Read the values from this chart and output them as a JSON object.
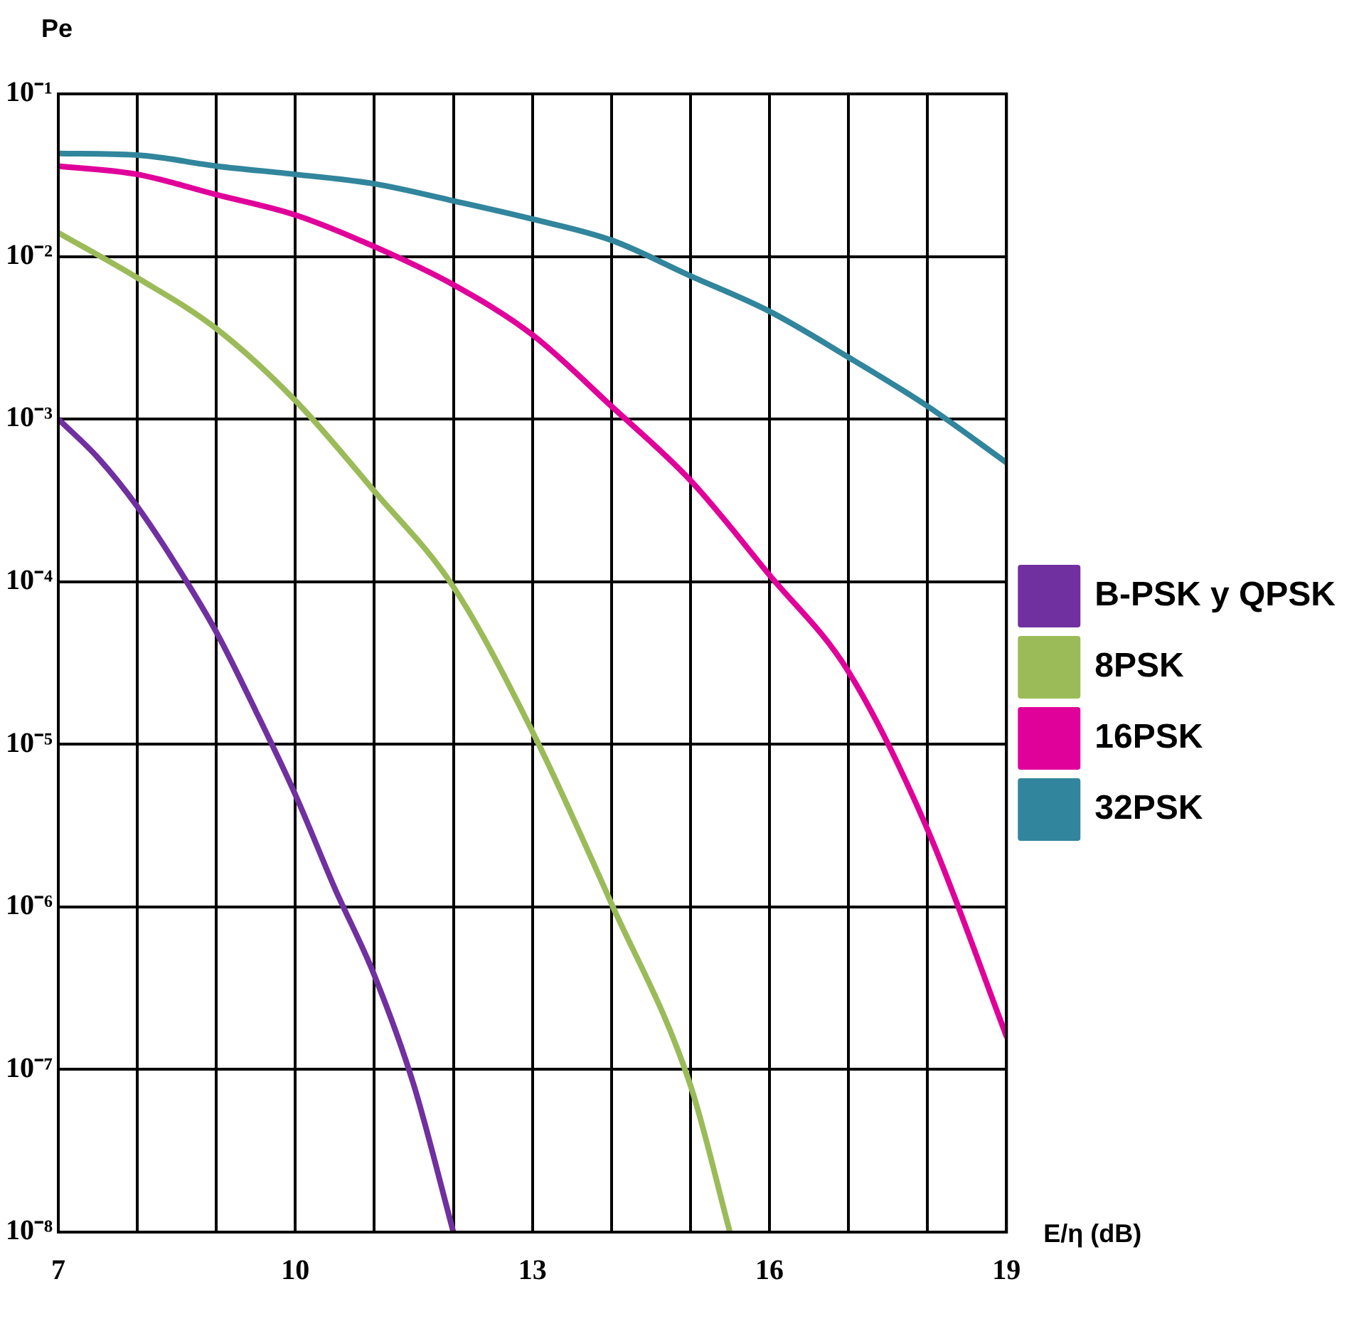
{
  "chart_data": {
    "type": "line",
    "xlabel": "E/η (dB)",
    "ylabel": "Pe",
    "log": "y",
    "grid": true,
    "legend": "right",
    "marker": "none",
    "line_style": "solid",
    "xlim": [
      7,
      19
    ],
    "ylim": [
      1e-08,
      0.1
    ],
    "xticks": [
      7,
      {
        "value": 8,
        "label": null
      },
      {
        "value": 9,
        "label": null
      },
      10,
      {
        "value": 11,
        "label": null
      },
      {
        "value": 12,
        "label": null
      },
      13,
      {
        "value": 14,
        "label": null
      },
      {
        "value": 15,
        "label": null
      },
      16,
      {
        "value": 17,
        "label": null
      },
      {
        "value": 18,
        "label": null
      },
      19
    ],
    "yticks": [
      {
        "value": 1e-08,
        "label": "10⁻⁸"
      },
      {
        "value": 1e-07,
        "label": "10⁻⁷"
      },
      {
        "value": 1e-06,
        "label": "10⁻⁶"
      },
      {
        "value": 1e-05,
        "label": "10⁻⁵"
      },
      {
        "value": 0.0001,
        "label": "10⁻⁴"
      },
      {
        "value": 0.001,
        "label": "10⁻³"
      },
      {
        "value": 0.01,
        "label": "10⁻²"
      },
      {
        "value": 0.1,
        "label": "10⁻¹"
      }
    ],
    "series": [
      {
        "name": "B-PSK y QPSK",
        "color": "#7030a0",
        "x": [
          7,
          7.5,
          8,
          8.5,
          9,
          9.5,
          10,
          10.5,
          11,
          11.5,
          12
        ],
        "values": [
          0.001,
          0.00058,
          0.00029,
          0.000125,
          4.9e-05,
          1.6e-05,
          4.9e-06,
          1.3e-06,
          3.8e-07,
          8e-08,
          1e-08
        ]
      },
      {
        "name": "8PSK",
        "color": "#9bbb59",
        "x": [
          7,
          8,
          9,
          10,
          11,
          12,
          13,
          14,
          15,
          15.5
        ],
        "values": [
          0.014,
          0.0074,
          0.0036,
          0.0013,
          0.00036,
          9.3e-05,
          1.2e-05,
          1.05e-06,
          8e-08,
          1e-08
        ]
      },
      {
        "name": "16PSK",
        "color": "#e0009a",
        "x": [
          7,
          8,
          9,
          10,
          11,
          12,
          13,
          14,
          15,
          16,
          17,
          18,
          19
        ],
        "values": [
          0.036,
          0.032,
          0.024,
          0.018,
          0.0115,
          0.0067,
          0.0033,
          0.0012,
          0.00042,
          0.00011,
          2.8e-05,
          3e-06,
          1.6e-07
        ]
      },
      {
        "name": "32PSK",
        "color": "#31859c",
        "x": [
          7,
          8,
          9,
          10,
          11,
          12,
          13,
          14,
          15,
          16,
          17,
          18,
          19
        ],
        "values": [
          0.043,
          0.042,
          0.036,
          0.032,
          0.028,
          0.022,
          0.017,
          0.0126,
          0.0076,
          0.0046,
          0.0024,
          0.0012,
          0.00054
        ]
      }
    ]
  }
}
